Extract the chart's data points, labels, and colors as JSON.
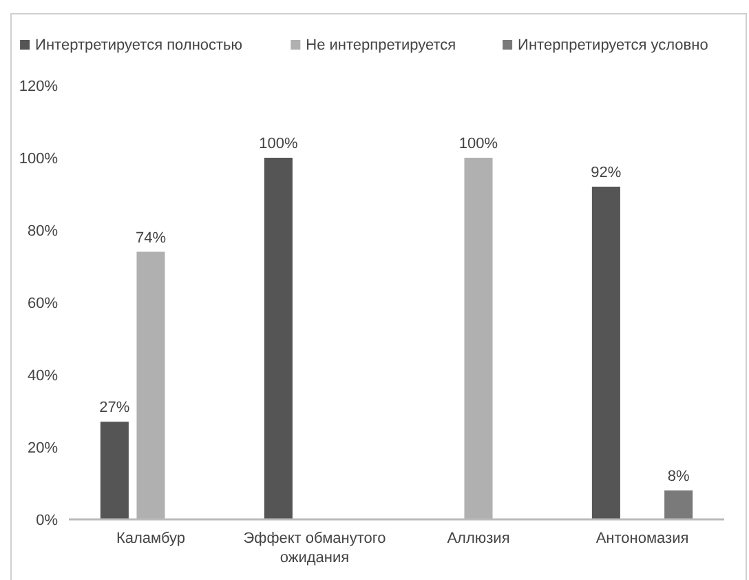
{
  "chart_data": {
    "type": "bar",
    "categories": [
      "Каламбур",
      "Эффект обманутого ожидания",
      "Аллюзия",
      "Антономазия"
    ],
    "series": [
      {
        "name": "Интертретируется полностью",
        "color": "#555555",
        "values": [
          27,
          100,
          null,
          92
        ],
        "value_labels": [
          "27%",
          "100%",
          null,
          "92%"
        ]
      },
      {
        "name": "Не интерпретируется",
        "color": "#b0b0b0",
        "values": [
          74,
          null,
          100,
          null
        ],
        "value_labels": [
          "74%",
          null,
          "100%",
          null
        ]
      },
      {
        "name": "Интерпретируется условно",
        "color": "#7a7a7a",
        "values": [
          null,
          null,
          null,
          8
        ],
        "value_labels": [
          null,
          null,
          null,
          "8%"
        ]
      }
    ],
    "ylim": [
      0,
      120
    ],
    "yticks": [
      {
        "value": 0,
        "label": "0%"
      },
      {
        "value": 20,
        "label": "20%"
      },
      {
        "value": 40,
        "label": "40%"
      },
      {
        "value": 60,
        "label": "60%"
      },
      {
        "value": 80,
        "label": "80%"
      },
      {
        "value": 100,
        "label": "100%"
      },
      {
        "value": 120,
        "label": "120%"
      }
    ],
    "legend": "top",
    "grid": false
  }
}
